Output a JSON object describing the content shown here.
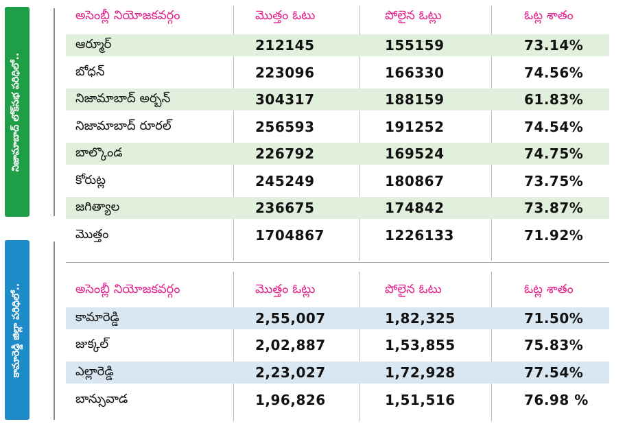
{
  "side_labels": {
    "top": "నిజామాబాద్ లోక్‌సభ పరిధిలో..",
    "bottom": "కామారెడ్డి జిల్లా పరిధిలో.."
  },
  "table1": {
    "headers": [
      "అసెంబ్లీ నియోజకవర్గం",
      "మొత్తం ఓటు",
      "పోలైన ఓట్లు",
      "ఓట్ల శాతం"
    ],
    "rows": [
      [
        "ఆర్మూర్",
        "212145",
        "155159",
        "73.14%"
      ],
      [
        "బోధన్",
        "223096",
        "166330",
        "74.56%"
      ],
      [
        "నిజామాబాద్ అర్బన్",
        "304317",
        "188159",
        "61.83%"
      ],
      [
        "నిజామాబాద్ రూరల్",
        "256593",
        "191252",
        "74.54%"
      ],
      [
        "బాల్కొండ",
        "226792",
        "169524",
        "74.75%"
      ],
      [
        "కోరుట్ల",
        "245249",
        "180867",
        "73.75%"
      ],
      [
        "జగిత్యాల",
        "236675",
        "174842",
        "73.87%"
      ],
      [
        "మొత్తం",
        "1704867",
        "1226133",
        "71.92%"
      ]
    ]
  },
  "table2": {
    "headers": [
      "అసెంబ్లీ నియోజకవర్గం",
      "మొత్తం ఓట్లు",
      "పోలైన ఓటు",
      "ఓట్ల శాతం"
    ],
    "rows": [
      [
        "కామారెడ్డి",
        "2,55,007",
        "1,82,325",
        "71.50%"
      ],
      [
        "జుక్కల్",
        "2,02,887",
        "1,53,855",
        "75.83%"
      ],
      [
        "ఎల్లారెడ్డి",
        "2,23,027",
        "1,72,928",
        "77.54%"
      ],
      [
        "బాన్సువాడ",
        "1,96,826",
        "1,51,516",
        "76.98 %"
      ]
    ]
  },
  "colors": {
    "header_text": "#e0218a",
    "green_band": "#1f9e48",
    "blue_band": "#1e8bc9",
    "green_stripe": "#e0f0dc",
    "blue_stripe": "#d9e7f3"
  }
}
